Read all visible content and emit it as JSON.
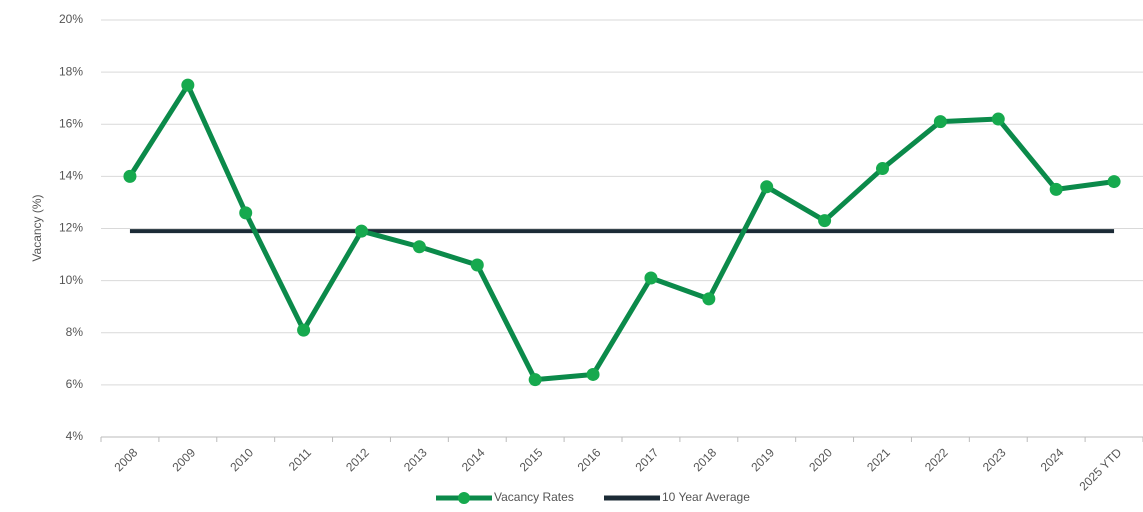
{
  "chart_data": {
    "type": "line",
    "ylabel": "Vacancy (%)",
    "categories": [
      "2008",
      "2009",
      "2010",
      "2011",
      "2012",
      "2013",
      "2014",
      "2015",
      "2016",
      "2017",
      "2018",
      "2019",
      "2020",
      "2021",
      "2022",
      "2023",
      "2024",
      "2025 YTD"
    ],
    "series": [
      {
        "name": "Vacancy Rates",
        "color": "#0b8a4a",
        "marker_color": "#16a94e",
        "values": [
          14.0,
          17.5,
          12.6,
          8.1,
          11.9,
          11.3,
          10.6,
          6.2,
          6.4,
          10.1,
          9.3,
          13.6,
          12.3,
          14.3,
          16.1,
          16.2,
          13.5,
          13.8
        ]
      },
      {
        "name": "10 Year Average",
        "color": "#1c2b36",
        "values": [
          11.9,
          11.9,
          11.9,
          11.9,
          11.9,
          11.9,
          11.9,
          11.9,
          11.9,
          11.9,
          11.9,
          11.9,
          11.9,
          11.9,
          11.9,
          11.9,
          11.9,
          11.9
        ]
      }
    ],
    "ylim": [
      4,
      20
    ],
    "yticks": [
      {
        "value": 4,
        "label": "4%"
      },
      {
        "value": 6,
        "label": "6%"
      },
      {
        "value": 8,
        "label": "8%"
      },
      {
        "value": 10,
        "label": "10%"
      },
      {
        "value": 12,
        "label": "12%"
      },
      {
        "value": 14,
        "label": "14%"
      },
      {
        "value": 16,
        "label": "16%"
      },
      {
        "value": 18,
        "label": "18%"
      },
      {
        "value": 20,
        "label": "20%"
      }
    ],
    "grid": true,
    "legend": "bottom"
  }
}
